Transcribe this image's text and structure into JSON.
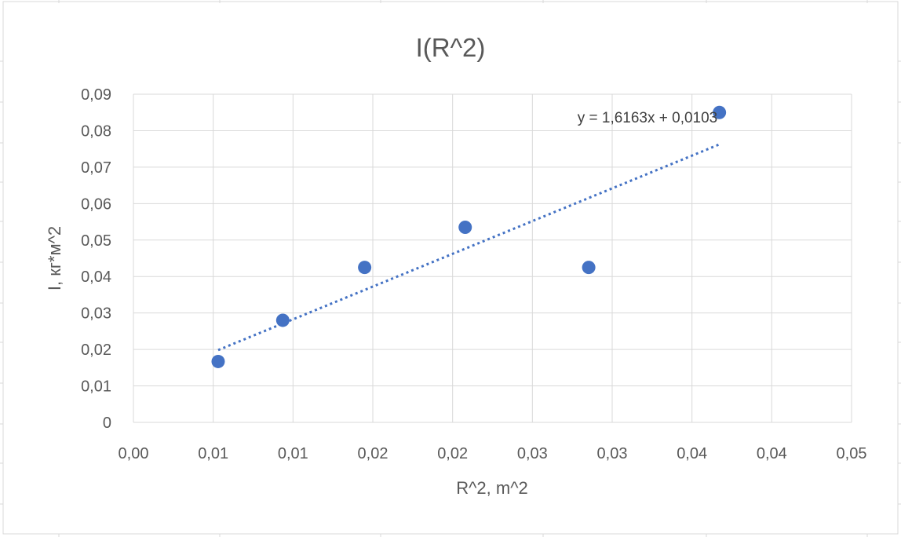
{
  "chart_data": {
    "type": "scatter",
    "title": "I(R^2)",
    "xlabel": "R^2, m^2",
    "ylabel": "I, кг*м^2",
    "xlim": [
      0,
      0.05
    ],
    "ylim": [
      0,
      0.09
    ],
    "x_tick_labels": [
      "0,00",
      "0,01",
      "0,01",
      "0,02",
      "0,02",
      "0,03",
      "0,03",
      "0,04",
      "0,04",
      "0,05"
    ],
    "y_tick_labels": [
      "0",
      "0,01",
      "0,02",
      "0,03",
      "0,04",
      "0,05",
      "0,06",
      "0,07",
      "0,08",
      "0,09"
    ],
    "grid": true,
    "legend": "none",
    "series": [
      {
        "color": "#4472c4",
        "points": [
          {
            "x": 0.0059,
            "y": 0.0167
          },
          {
            "x": 0.0104,
            "y": 0.028
          },
          {
            "x": 0.0161,
            "y": 0.0425
          },
          {
            "x": 0.0231,
            "y": 0.0535
          },
          {
            "x": 0.0317,
            "y": 0.0425
          },
          {
            "x": 0.0408,
            "y": 0.085
          }
        ]
      }
    ],
    "trendline": {
      "equation": "y = 1,6163x + 0,0103",
      "slope": 1.6163,
      "intercept": 0.0103,
      "x_range": [
        0.0059,
        0.0408
      ],
      "color": "#4472c4",
      "style": "dotted"
    }
  }
}
